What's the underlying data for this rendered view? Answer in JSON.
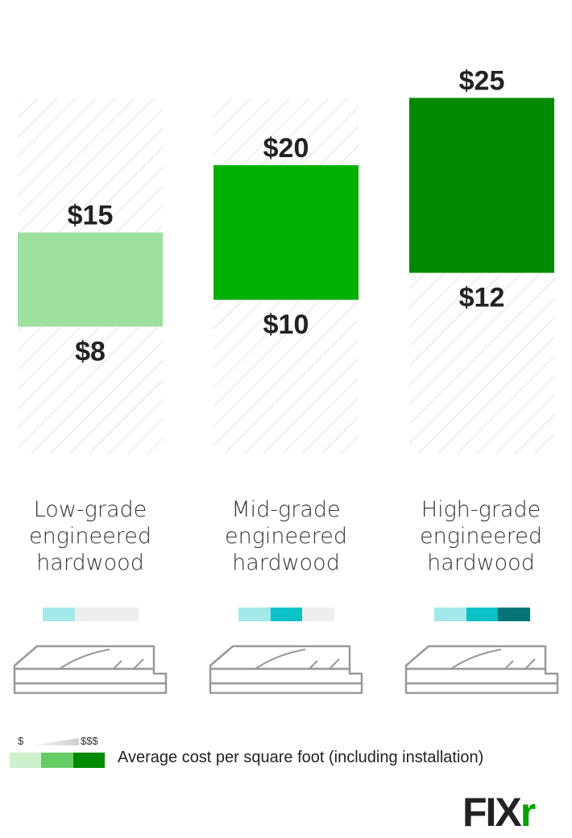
{
  "chart_data": {
    "type": "bar",
    "subtype": "floating-range",
    "categories": [
      [
        "Low-grade",
        "engineered",
        "hardwood"
      ],
      [
        "Mid-grade",
        "engineered",
        "hardwood"
      ],
      [
        "High-grade",
        "engineered",
        "hardwood"
      ]
    ],
    "low": [
      8,
      10,
      12
    ],
    "high": [
      15,
      20,
      25
    ],
    "low_labels": [
      "$8",
      "$10",
      "$12"
    ],
    "high_labels": [
      "$15",
      "$20",
      "$25"
    ],
    "bar_colors": [
      "#9ee09e",
      "#00b200",
      "#008a00"
    ],
    "cost_rating": [
      1,
      2,
      3
    ],
    "rating_colors": [
      "#a3e9ea",
      "#0bc2c6",
      "#037577"
    ],
    "rating_empty_color": "#eeeeee",
    "background_pattern": "diagonal-hatch",
    "legend": {
      "low_symbol": "$",
      "high_symbol": "$$$",
      "swatch_colors": [
        "#cdf0cd",
        "#66cc66",
        "#008a00"
      ],
      "text": "Average cost per square foot (including installation)"
    },
    "logo": "FIXR",
    "logo_color": "#00a300",
    "plank_icon": "hardwood-plank-icon"
  }
}
